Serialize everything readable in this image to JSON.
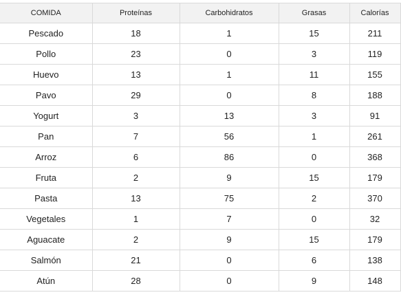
{
  "table": {
    "headers": [
      "COMIDA",
      "Proteínas",
      "Carbohidratos",
      "Grasas",
      "Calorías"
    ],
    "rows": [
      [
        "Pescado",
        "18",
        "1",
        "15",
        "211"
      ],
      [
        "Pollo",
        "23",
        "0",
        "3",
        "119"
      ],
      [
        "Huevo",
        "13",
        "1",
        "11",
        "155"
      ],
      [
        "Pavo",
        "29",
        "0",
        "8",
        "188"
      ],
      [
        "Yogurt",
        "3",
        "13",
        "3",
        "91"
      ],
      [
        "Pan",
        "7",
        "56",
        "1",
        "261"
      ],
      [
        "Arroz",
        "6",
        "86",
        "0",
        "368"
      ],
      [
        "Fruta",
        "2",
        "9",
        "15",
        "179"
      ],
      [
        "Pasta",
        "13",
        "75",
        "2",
        "370"
      ],
      [
        "Vegetales",
        "1",
        "7",
        "0",
        "32"
      ],
      [
        "Aguacate",
        "2",
        "9",
        "15",
        "179"
      ],
      [
        "Salmón",
        "21",
        "0",
        "6",
        "138"
      ],
      [
        "Atún",
        "28",
        "0",
        "9",
        "148"
      ]
    ]
  },
  "colors": {
    "header_background": "#f2f2f2",
    "grid_line": "#d9d9d9",
    "text": "#222222",
    "background": "#ffffff"
  }
}
